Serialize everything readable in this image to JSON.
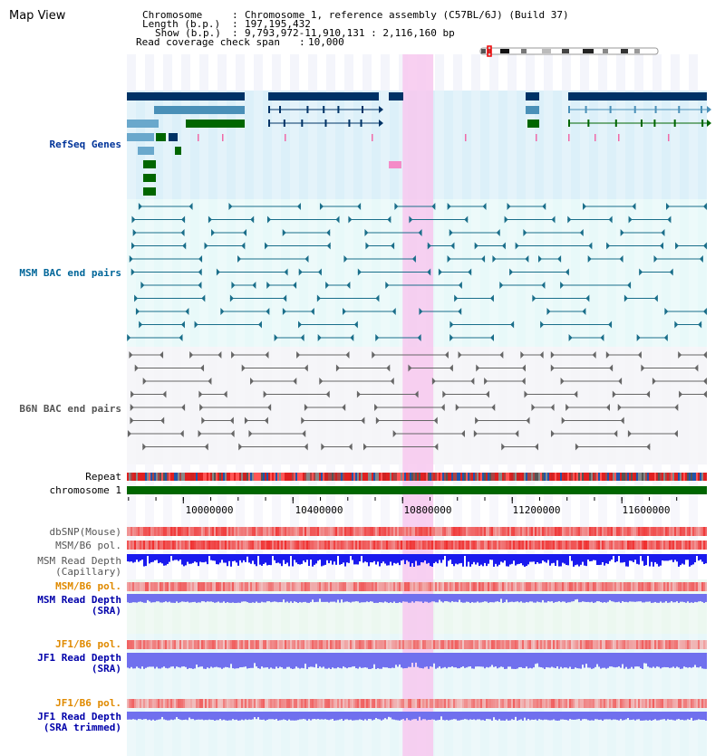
{
  "header": {
    "title": "Map View",
    "chromosome_label": "Chromosome",
    "chromosome_value": "Chromosome 1, reference assembly (C57BL/6J) (Build 37)",
    "length_label": "Length (b.p.)",
    "length_value": "197,195,432",
    "show_label": "Show (b.p.)",
    "show_value": "9,793,972-11,910,131 : 2,116,160 bp",
    "coverage_label": "Read coverage check span",
    "coverage_value": "10,000"
  },
  "tracks": {
    "refseq": "RefSeq Genes",
    "msm_bac": "MSM BAC end pairs",
    "b6n_bac": "B6N BAC end pairs",
    "repeat": "Repeat",
    "chromosome": "chromosome 1",
    "dbsnp": "dbSNP(Mouse)",
    "msm_b6_pol": "MSM/B6 pol.",
    "msm_depth_cap_1": "MSM Read Depth",
    "msm_depth_cap_2": "(Capillary)",
    "msm_b6_pol_sra": "MSM/B6 pol.",
    "msm_depth_sra_1": "MSM Read Depth",
    "msm_depth_sra_2": "(SRA)",
    "jf1_b6_pol": "JF1/B6 pol.",
    "jf1_depth_1": "JF1 Read Depth",
    "jf1_depth_2": "(SRA)",
    "jf1_b6_pol_trim": "JF1/B6 pol.",
    "jf1_depth_trim_1": "JF1 Read Depth",
    "jf1_depth_trim_2": "(SRA trimmed)"
  },
  "axis": {
    "ticks": [
      "10000000",
      "10400000",
      "10800000",
      "11200000",
      "11600000"
    ],
    "tick_values": [
      10000000,
      10400000,
      10800000,
      11200000,
      11600000
    ]
  },
  "range": {
    "start": 9793972,
    "end": 11910131
  },
  "highlight": {
    "start": 10800000,
    "end": 10912000
  },
  "colors": {
    "refseq_dark": "#003366",
    "refseq_mid": "#4a90b8",
    "refseq_light": "#6aa8cc",
    "refseq_green": "#006600",
    "msm_bac": "#1a6e8a",
    "b6n_bac": "#666666",
    "chromosome": "#006600",
    "highlight": "#f7c8ee",
    "depth_dark": "#1a1aee",
    "depth_light": "#7070ee"
  }
}
